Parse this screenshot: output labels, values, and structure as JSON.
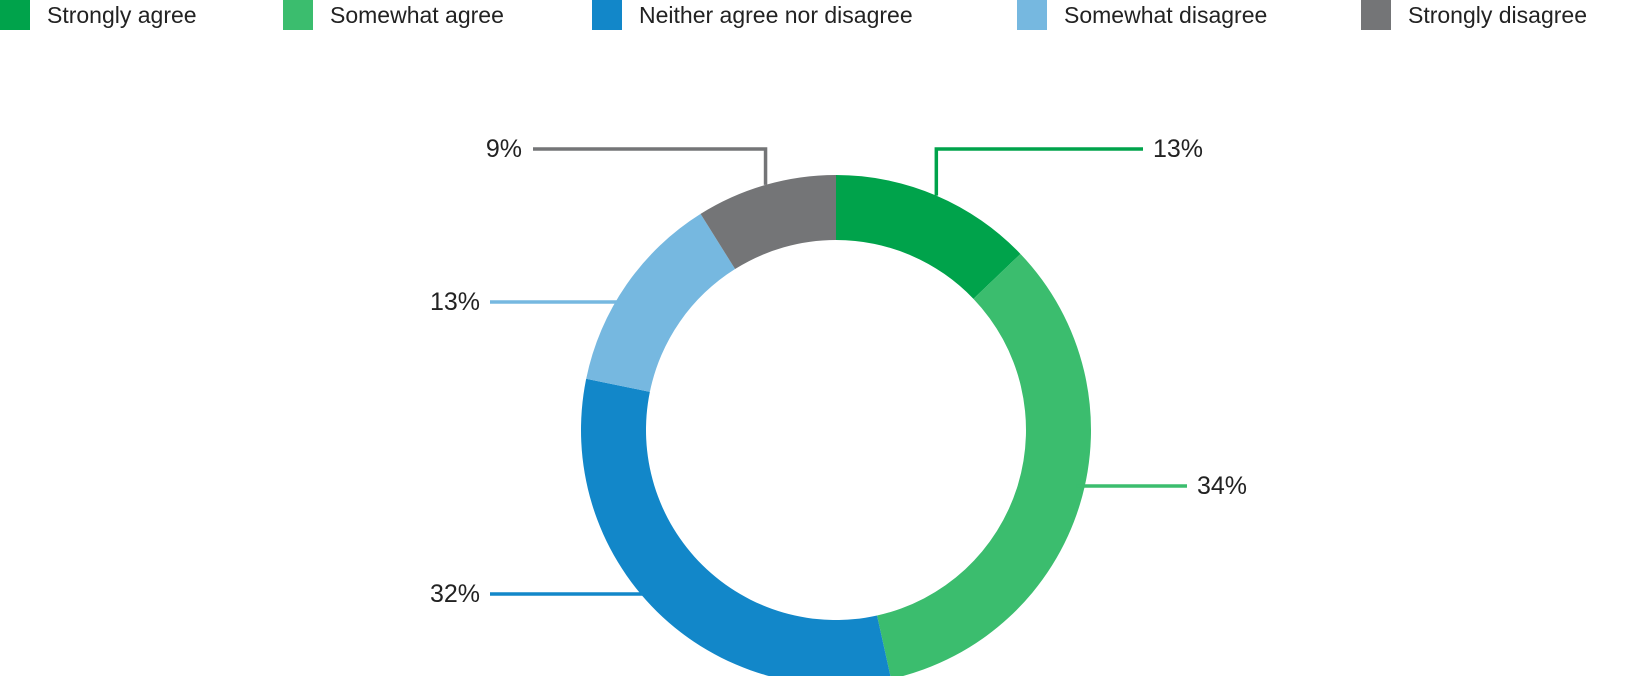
{
  "chart_data": {
    "type": "pie",
    "variant": "donut",
    "categories": [
      "Strongly agree",
      "Somewhat agree",
      "Neither agree nor disagree",
      "Somewhat disagree",
      "Strongly disagree"
    ],
    "values": [
      13,
      34,
      32,
      13,
      9
    ],
    "value_labels": [
      "13%",
      "34%",
      "32%",
      "13%",
      "9%"
    ],
    "colors": [
      "#00a34b",
      "#3bbd6e",
      "#1287c9",
      "#76b8e0",
      "#747577"
    ],
    "legend_position": "top",
    "title": ""
  }
}
